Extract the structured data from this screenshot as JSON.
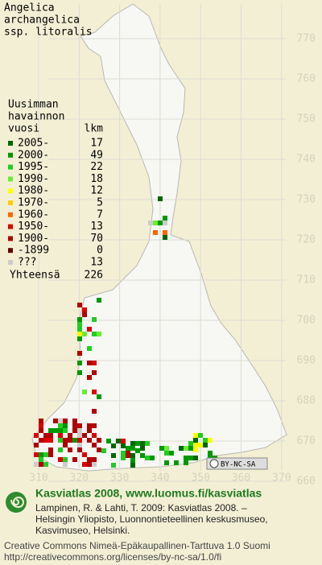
{
  "title": [
    "Angelica",
    "archangelica",
    "ssp. litoralis"
  ],
  "legend": {
    "heading": [
      "Uusimman",
      "havainnon",
      "vuosi"
    ],
    "count_heading": "lkm",
    "rows": [
      {
        "label": "2005-",
        "count": 17,
        "color": "#006600"
      },
      {
        "label": "2000-",
        "count": 49,
        "color": "#009900"
      },
      {
        "label": "1995-",
        "count": 22,
        "color": "#22cc22"
      },
      {
        "label": "1990-",
        "count": 18,
        "color": "#66ee33"
      },
      {
        "label": "1980-",
        "count": 12,
        "color": "#ffff00"
      },
      {
        "label": "1970-",
        "count": 5,
        "color": "#ffcc00"
      },
      {
        "label": "1960-",
        "count": 7,
        "color": "#ff6600"
      },
      {
        "label": "1950-",
        "count": 13,
        "color": "#dd0000"
      },
      {
        "label": "1900-",
        "count": 70,
        "color": "#b00000"
      },
      {
        "label": "-1899",
        "count": 0,
        "color": "#660000"
      },
      {
        "label": "???",
        "count": 13,
        "color": "#cccccc"
      }
    ],
    "total_label": "Yhteensä",
    "total": 226
  },
  "grid": {
    "y_labels": [
      770,
      760,
      750,
      740,
      730,
      720,
      710,
      700,
      690,
      680,
      670,
      660
    ],
    "x_labels": [
      310,
      320,
      330,
      340,
      350,
      360,
      370
    ]
  },
  "badge": "BY-NC-SA",
  "footer": {
    "site": "Kasviatlas 2008, www.luomus.fi/kasviatlas",
    "citation": [
      "Lampinen, R. & Lahti, T. 2009: Kasviatlas 2008. –",
      "Helsingin Yliopisto, Luonnontieteellinen keskusmuseo,",
      "Kasvimuseo, Helsinki."
    ],
    "license": [
      "Creative Commons Nimeä-Epäkaupallinen-Tarttuva 1.0 Suomi",
      "http://creativecommons.org/licenses/by-nc-sa/1.0/fi"
    ]
  }
}
